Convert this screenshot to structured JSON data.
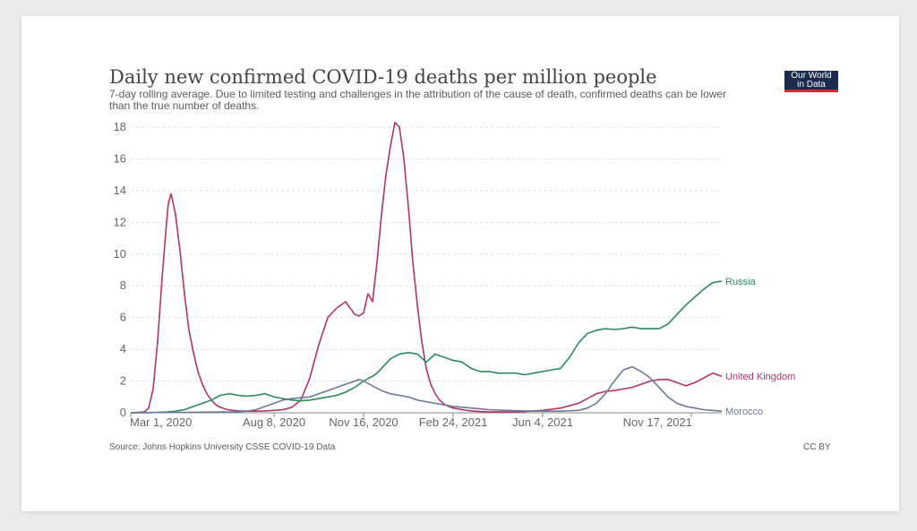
{
  "header": {
    "title": "Daily new confirmed COVID-19 deaths per million people",
    "subtitle": "7-day rolling average. Due to limited testing and challenges in the attribution of the cause of death, confirmed deaths can be lower than the true number of deaths.",
    "logo_line1": "Our World",
    "logo_line2": "in Data",
    "logo_bg": "#1a2b4b",
    "logo_accent": "#d42b2b"
  },
  "footer": {
    "source": "Source: Johns Hopkins University CSSE COVID-19 Data",
    "license": "CC BY"
  },
  "chart_data": {
    "type": "line",
    "title": "Daily new confirmed COVID-19 deaths per million people",
    "xlabel": "",
    "ylabel": "",
    "ylim": [
      0,
      18
    ],
    "yticks": [
      0,
      2,
      4,
      6,
      8,
      10,
      12,
      14,
      16,
      18
    ],
    "xlim": [
      0,
      660
    ],
    "x_unit": "days since Mar 1, 2020",
    "xticks": [
      {
        "x": 0,
        "label": "Mar 1, 2020"
      },
      {
        "x": 160,
        "label": "Aug 8, 2020"
      },
      {
        "x": 260,
        "label": "Nov 16, 2020"
      },
      {
        "x": 360,
        "label": "Feb 24, 2021"
      },
      {
        "x": 460,
        "label": "Jun 4, 2021"
      },
      {
        "x": 626,
        "label": "Nov 17, 2021"
      }
    ],
    "grid": true,
    "series": [
      {
        "name": "United Kingdom",
        "color": "#b13466",
        "x": [
          0,
          15,
          20,
          25,
          30,
          35,
          40,
          42,
          45,
          47,
          50,
          55,
          60,
          65,
          70,
          75,
          80,
          85,
          90,
          95,
          100,
          105,
          110,
          120,
          130,
          140,
          150,
          160,
          170,
          180,
          190,
          200,
          210,
          220,
          230,
          240,
          250,
          255,
          260,
          265,
          270,
          275,
          280,
          285,
          290,
          295,
          300,
          305,
          310,
          315,
          320,
          325,
          330,
          335,
          340,
          345,
          350,
          355,
          360,
          370,
          380,
          390,
          400,
          420,
          440,
          460,
          480,
          500,
          510,
          520,
          530,
          540,
          550,
          560,
          570,
          580,
          590,
          600,
          610,
          620,
          630,
          640,
          650,
          660
        ],
        "values": [
          0,
          0.05,
          0.3,
          1.5,
          4.5,
          8.5,
          12.0,
          13.2,
          13.8,
          13.3,
          12.5,
          10.2,
          7.5,
          5.2,
          3.8,
          2.6,
          1.8,
          1.2,
          0.8,
          0.5,
          0.35,
          0.25,
          0.18,
          0.12,
          0.1,
          0.1,
          0.12,
          0.15,
          0.2,
          0.35,
          0.8,
          2.2,
          4.3,
          6.0,
          6.6,
          7.0,
          6.2,
          6.1,
          6.3,
          7.5,
          7.0,
          9.5,
          12.5,
          15.0,
          16.8,
          18.3,
          18.0,
          16.0,
          13.0,
          9.5,
          6.8,
          4.5,
          2.8,
          1.8,
          1.2,
          0.8,
          0.55,
          0.4,
          0.3,
          0.2,
          0.12,
          0.08,
          0.06,
          0.05,
          0.08,
          0.15,
          0.3,
          0.6,
          0.9,
          1.2,
          1.35,
          1.4,
          1.5,
          1.6,
          1.8,
          2.0,
          2.1,
          2.1,
          1.9,
          1.7,
          1.9,
          2.2,
          2.5,
          2.3
        ]
      },
      {
        "name": "Russia",
        "color": "#2d8a5c",
        "x": [
          0,
          20,
          30,
          40,
          50,
          60,
          70,
          80,
          90,
          100,
          110,
          120,
          130,
          140,
          150,
          160,
          170,
          180,
          190,
          200,
          210,
          220,
          230,
          240,
          250,
          260,
          270,
          275,
          280,
          285,
          290,
          300,
          310,
          320,
          330,
          340,
          350,
          360,
          370,
          380,
          390,
          400,
          410,
          420,
          430,
          440,
          450,
          460,
          470,
          480,
          490,
          500,
          505,
          510,
          520,
          530,
          540,
          550,
          560,
          570,
          580,
          590,
          600,
          610,
          620,
          630,
          640,
          650,
          660
        ],
        "values": [
          0,
          0.01,
          0.02,
          0.05,
          0.1,
          0.2,
          0.4,
          0.6,
          0.8,
          1.1,
          1.2,
          1.1,
          1.05,
          1.1,
          1.2,
          1.0,
          0.9,
          0.8,
          0.75,
          0.8,
          0.9,
          1.0,
          1.1,
          1.3,
          1.6,
          2.0,
          2.3,
          2.5,
          2.8,
          3.1,
          3.4,
          3.7,
          3.8,
          3.7,
          3.2,
          3.7,
          3.5,
          3.3,
          3.2,
          2.8,
          2.6,
          2.6,
          2.5,
          2.5,
          2.5,
          2.4,
          2.5,
          2.6,
          2.7,
          2.8,
          3.5,
          4.4,
          4.7,
          5.0,
          5.2,
          5.3,
          5.25,
          5.3,
          5.4,
          5.3,
          5.3,
          5.3,
          5.6,
          6.2,
          6.8,
          7.3,
          7.8,
          8.2,
          8.3
        ]
      },
      {
        "name": "Morocco",
        "color": "#6b7a99",
        "x": [
          0,
          40,
          60,
          80,
          100,
          120,
          130,
          140,
          150,
          160,
          170,
          180,
          190,
          200,
          210,
          220,
          230,
          240,
          250,
          255,
          260,
          270,
          280,
          290,
          300,
          310,
          320,
          330,
          340,
          350,
          360,
          370,
          380,
          390,
          400,
          420,
          440,
          460,
          480,
          500,
          510,
          520,
          530,
          540,
          550,
          560,
          570,
          580,
          590,
          600,
          610,
          620,
          630,
          640,
          650,
          660
        ],
        "values": [
          0,
          0.02,
          0.03,
          0.04,
          0.05,
          0.06,
          0.1,
          0.2,
          0.4,
          0.6,
          0.8,
          0.9,
          0.95,
          1.0,
          1.2,
          1.4,
          1.6,
          1.8,
          2.0,
          2.1,
          2.0,
          1.7,
          1.4,
          1.2,
          1.1,
          1.0,
          0.8,
          0.7,
          0.6,
          0.5,
          0.4,
          0.35,
          0.3,
          0.25,
          0.2,
          0.15,
          0.12,
          0.1,
          0.1,
          0.15,
          0.3,
          0.6,
          1.2,
          2.0,
          2.7,
          2.9,
          2.6,
          2.2,
          1.6,
          1.0,
          0.6,
          0.4,
          0.3,
          0.2,
          0.15,
          0.1
        ]
      }
    ]
  }
}
